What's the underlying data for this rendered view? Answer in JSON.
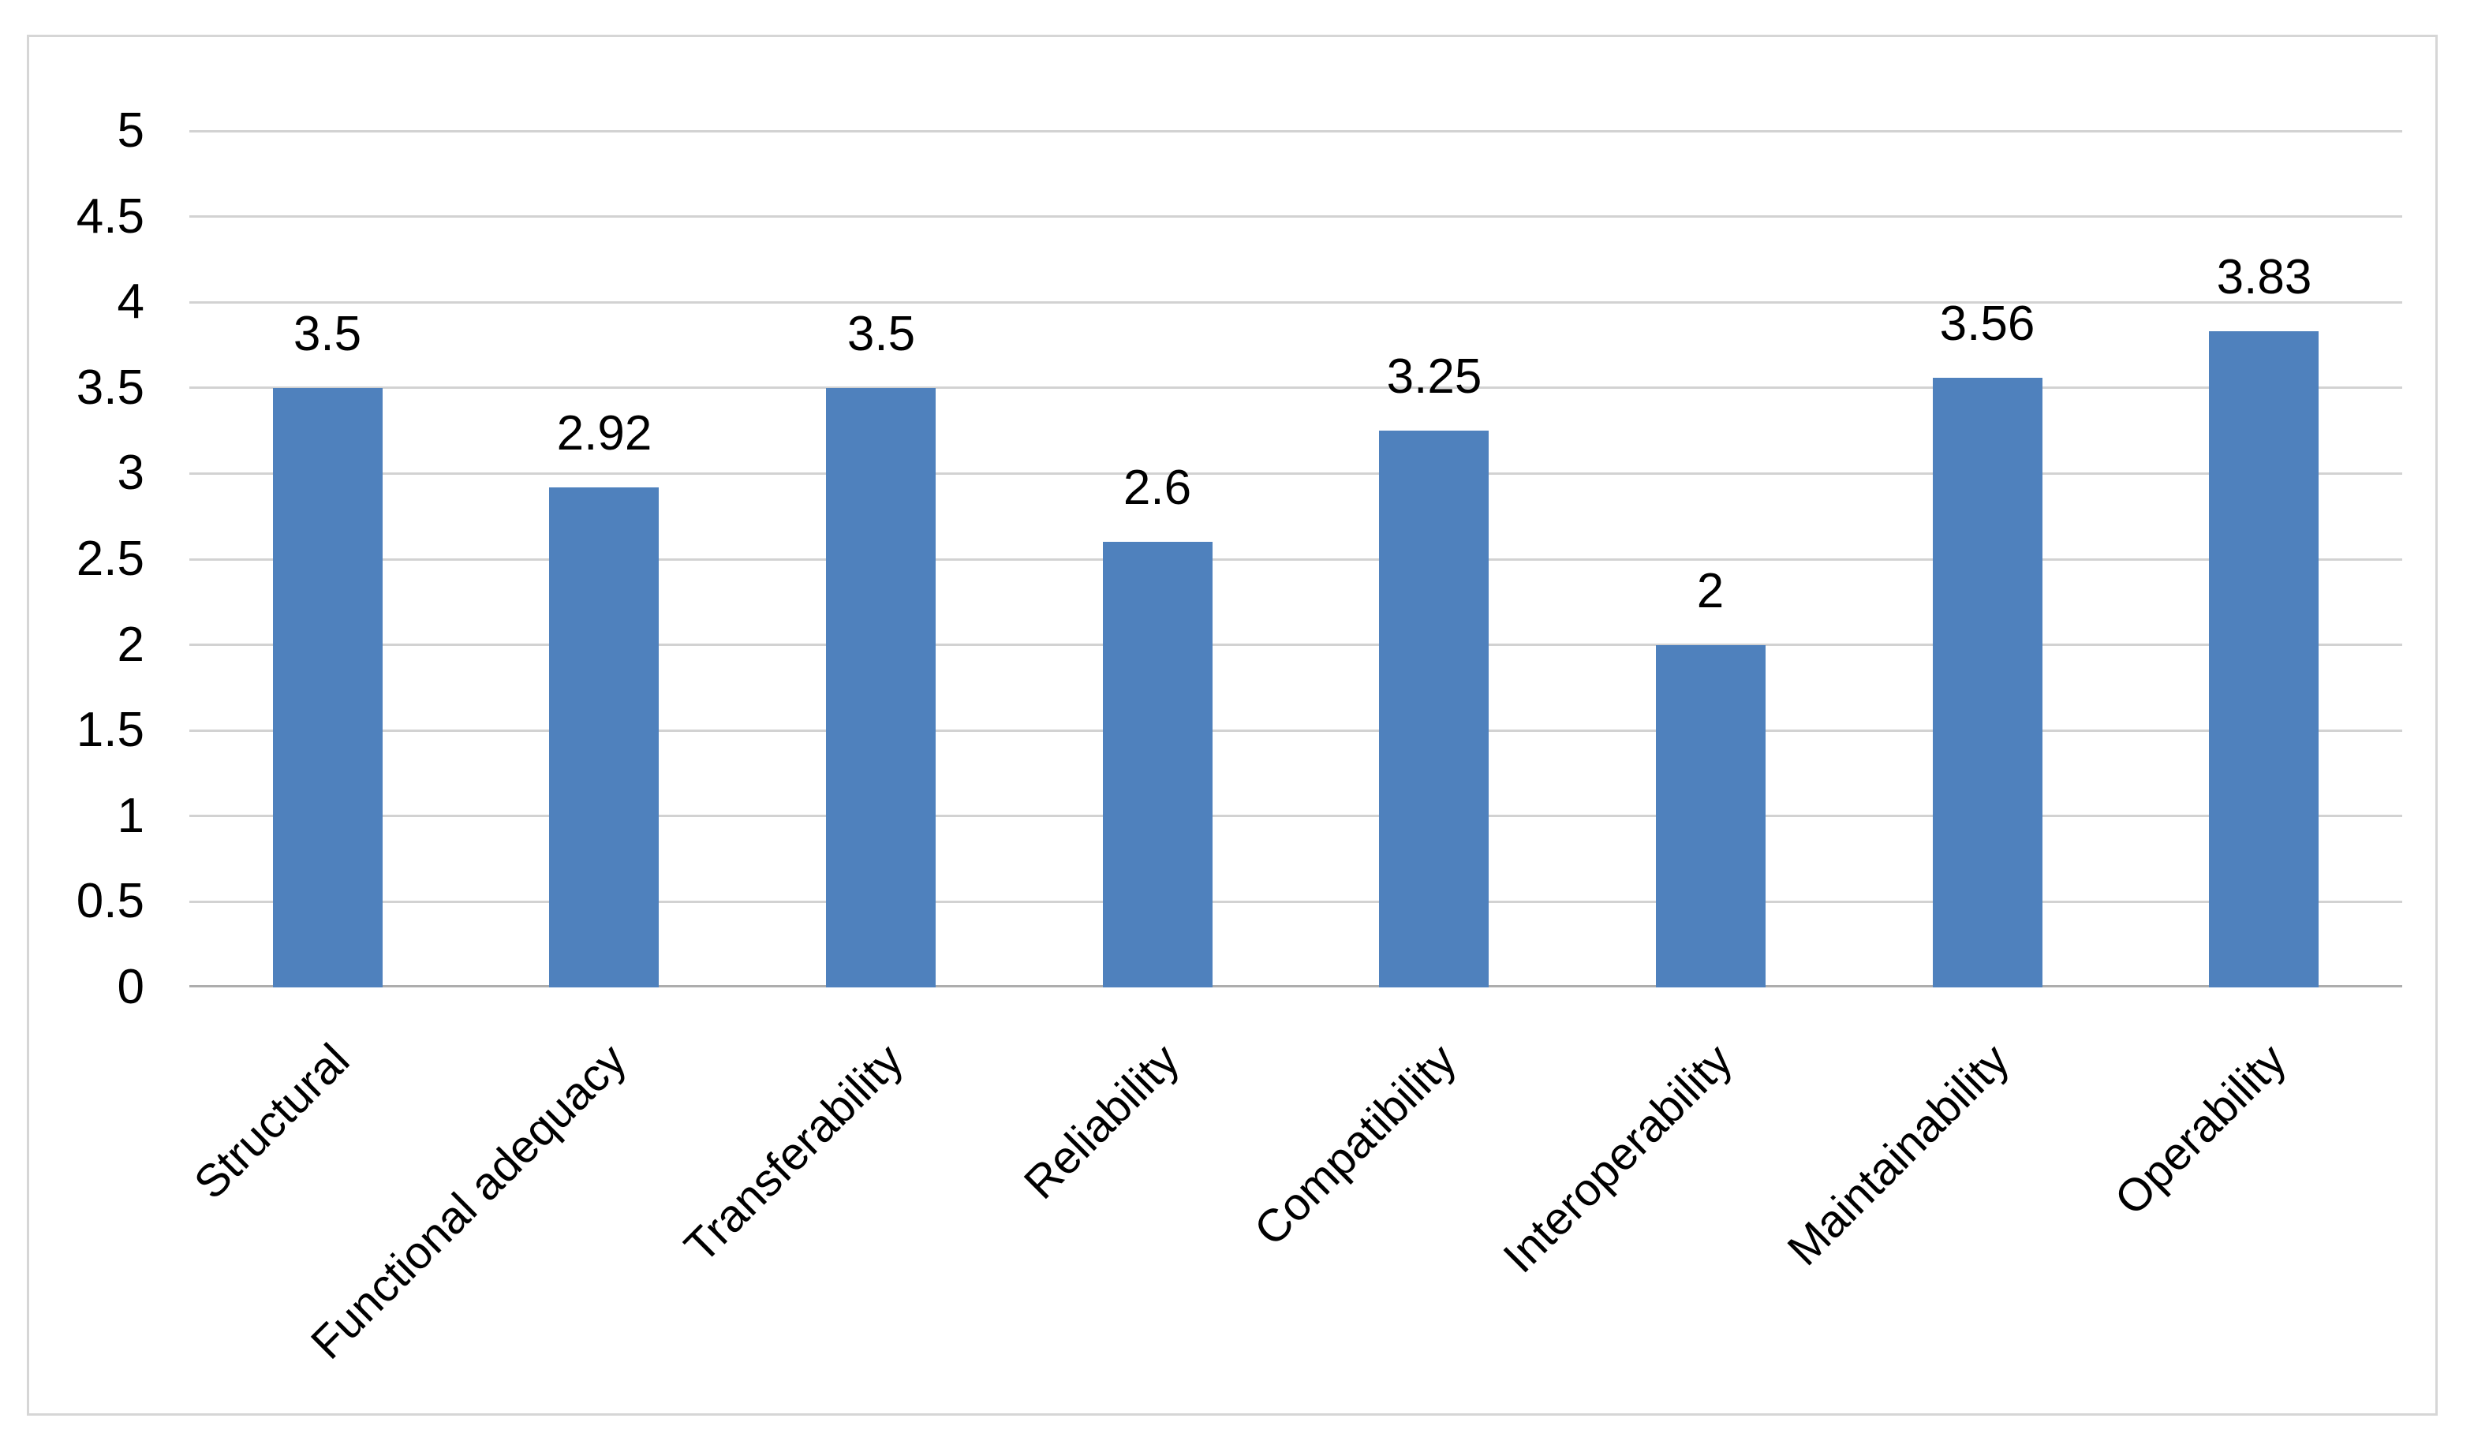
{
  "chart_data": {
    "type": "bar",
    "title": "",
    "xlabel": "",
    "ylabel": "",
    "categories": [
      "Structural",
      "Functional adequacy",
      "Transferability",
      "Reliability",
      "Compatibility",
      "Interoperability",
      "Maintainability",
      "Operability"
    ],
    "values": [
      3.5,
      2.92,
      3.5,
      2.6,
      3.25,
      2,
      3.56,
      3.83
    ],
    "data_labels": [
      "3.5",
      "2.92",
      "3.5",
      "2.6",
      "3.25",
      "2",
      "3.56",
      "3.83"
    ],
    "ylim": [
      0,
      5
    ],
    "y_ticks": [
      0,
      0.5,
      1,
      1.5,
      2,
      2.5,
      3,
      3.5,
      4,
      4.5,
      5
    ],
    "y_tick_labels": [
      "0",
      "0.5",
      "1",
      "1.5",
      "2",
      "2.5",
      "3",
      "3.5",
      "4",
      "4.5",
      "5"
    ],
    "grid": "horizontal",
    "legend": "none",
    "bar_color": "#4F81BD",
    "gridline_color": "#D2D2D2",
    "axis_line_color": "#ADADAD",
    "frame_border_color": "#D6D6D6",
    "text_color": "#000000",
    "background_color": "#FFFFFF"
  }
}
